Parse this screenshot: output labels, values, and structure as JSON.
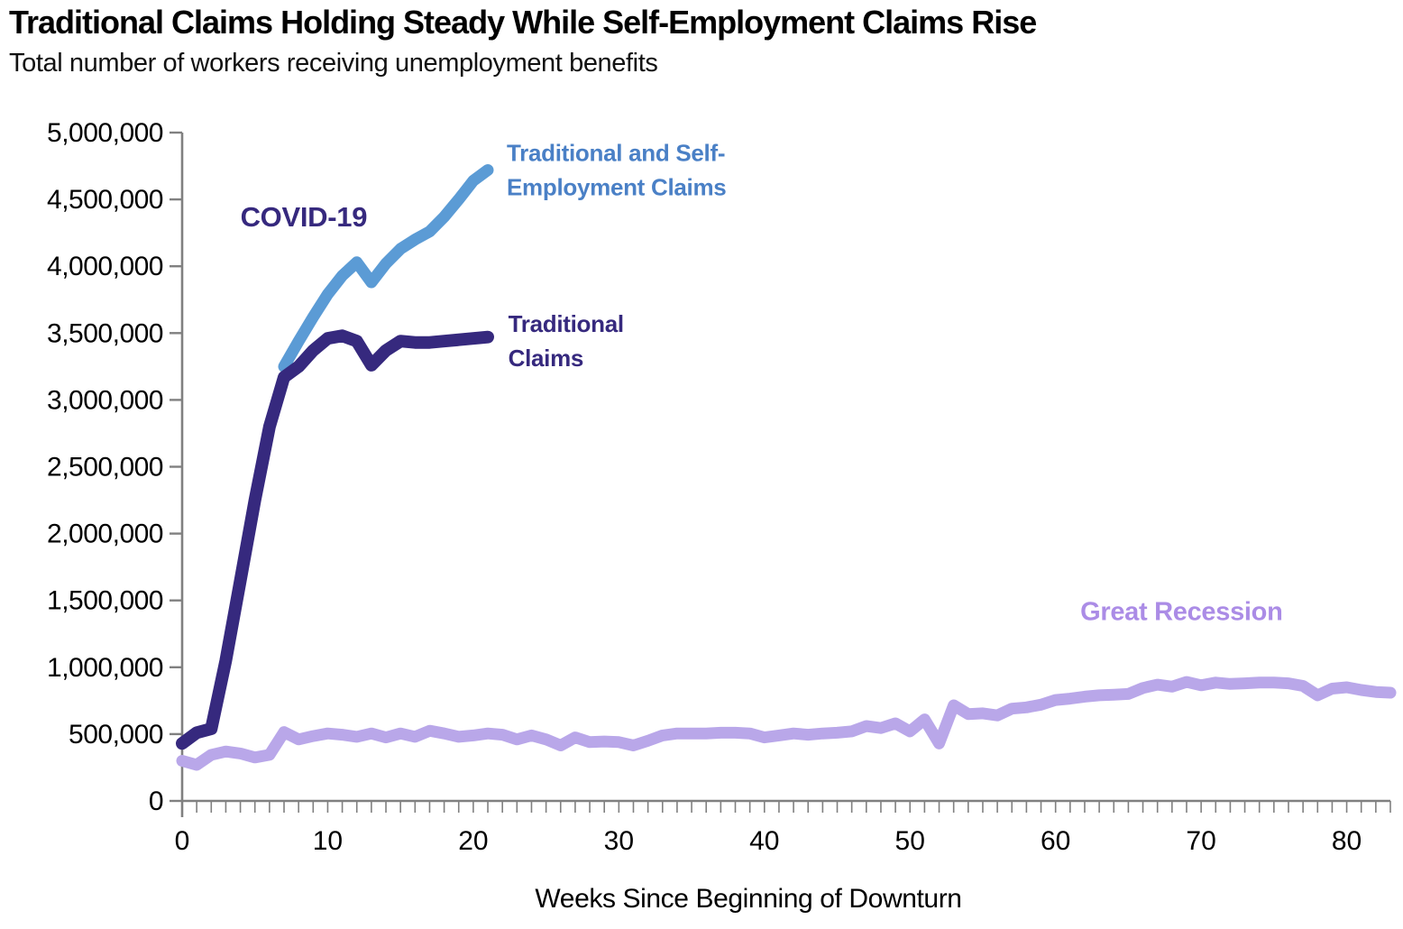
{
  "title": "Traditional Claims Holding Steady While Self-Employment Claims Rise",
  "subtitle": "Total number of workers receiving unemployment benefits",
  "chart_data": {
    "type": "line",
    "title": "Traditional Claims Holding Steady While Self-Employment Claims Rise",
    "subtitle": "Total number of workers receiving unemployment benefits",
    "xlabel": "Weeks Since Beginning of Downturn",
    "ylabel": "",
    "xlim": [
      0,
      83
    ],
    "ylim": [
      0,
      5000000
    ],
    "xtick_step": 10,
    "minor_xtick_step": 1,
    "ytick_step": 500000,
    "grid": false,
    "legend_position": "annotations-on-chart",
    "axis_color": "#808080",
    "tick_label_color": "#000000",
    "series": [
      {
        "id": "great-recession",
        "name": "Great Recession",
        "color": "#b9a7e9",
        "start_week": 0,
        "values": [
          300000,
          270000,
          345000,
          370000,
          355000,
          325000,
          345000,
          515000,
          460000,
          485000,
          505000,
          495000,
          480000,
          505000,
          475000,
          505000,
          480000,
          525000,
          505000,
          480000,
          490000,
          505000,
          495000,
          460000,
          490000,
          460000,
          415000,
          475000,
          440000,
          445000,
          440000,
          415000,
          450000,
          490000,
          505000,
          505000,
          505000,
          510000,
          510000,
          505000,
          475000,
          490000,
          505000,
          495000,
          505000,
          510000,
          520000,
          560000,
          545000,
          580000,
          520000,
          610000,
          430000,
          715000,
          650000,
          655000,
          640000,
          690000,
          700000,
          720000,
          755000,
          765000,
          780000,
          790000,
          795000,
          800000,
          845000,
          870000,
          855000,
          890000,
          865000,
          885000,
          875000,
          880000,
          885000,
          885000,
          880000,
          860000,
          790000,
          840000,
          850000,
          830000,
          815000,
          810000
        ]
      },
      {
        "id": "combined",
        "name": "Traditional and Self-Employment Claims",
        "color": "#5b9bd5",
        "start_week": 7,
        "values": [
          3250000,
          3440000,
          3620000,
          3790000,
          3930000,
          4030000,
          3880000,
          4020000,
          4130000,
          4200000,
          4260000,
          4370000,
          4500000,
          4640000,
          4720000
        ]
      },
      {
        "id": "traditional",
        "name": "Traditional Claims",
        "color": "#36297e",
        "start_week": 0,
        "values": [
          430000,
          510000,
          540000,
          1050000,
          1650000,
          2250000,
          2800000,
          3170000,
          3250000,
          3370000,
          3460000,
          3480000,
          3440000,
          3260000,
          3370000,
          3440000,
          3430000,
          3430000,
          3440000,
          3450000,
          3460000,
          3470000
        ]
      }
    ],
    "annotations": [
      {
        "id": "covid-19-label",
        "lines": [
          "COVID-19"
        ],
        "week": 4.0,
        "value": 4370000,
        "color": "#36297e"
      },
      {
        "id": "combined-label",
        "lines": [
          "Traditional and Self-",
          "Employment Claims"
        ],
        "week": 22.3,
        "value": 4850000,
        "color": "#4a80c6"
      },
      {
        "id": "traditional-label",
        "lines": [
          "Traditional",
          "Claims"
        ],
        "week": 22.4,
        "value": 3570000,
        "color": "#36297e"
      },
      {
        "id": "great-recession-label",
        "lines": [
          "Great Recession"
        ],
        "week": 61.7,
        "value": 1420000,
        "color": "#ab8ce6"
      }
    ],
    "ytick_labels": [
      "0",
      "500,000",
      "1,000,000",
      "1,500,000",
      "2,000,000",
      "2,500,000",
      "3,000,000",
      "3,500,000",
      "4,000,000",
      "4,500,000",
      "5,000,000"
    ],
    "xtick_labels": [
      "0",
      "10",
      "20",
      "30",
      "40",
      "50",
      "60",
      "70",
      "80"
    ]
  }
}
